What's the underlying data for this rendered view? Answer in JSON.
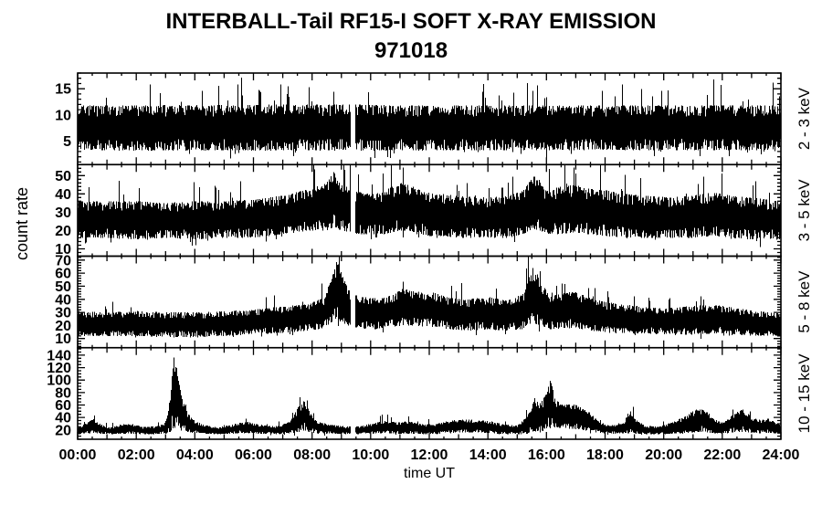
{
  "chart_data": {
    "type": "line",
    "title": "INTERBALL-Tail RF15-I SOFT X-RAY EMISSION",
    "subtitle": "971018",
    "ylabel": "count rate",
    "xlabel": "time UT",
    "line_color": "#000000",
    "background_color": "#ffffff",
    "x_axis": {
      "range_hours": [
        0,
        24
      ],
      "major_tick_hours": 2,
      "hour_tick": 1,
      "minor_tick_hours": 0.5,
      "tick_labels": [
        "00:00",
        "02:00",
        "04:00",
        "06:00",
        "08:00",
        "10:00",
        "12:00",
        "14:00",
        "16:00",
        "18:00",
        "20:00",
        "22:00",
        "24:00"
      ]
    },
    "data_gap_hours": [
      9.33,
      9.48
    ],
    "panels": [
      {
        "label": "2 - 3 keV",
        "ylim": [
          0.5,
          18
        ],
        "yticks": [
          5,
          10,
          15
        ],
        "minor_step": 1,
        "spike_chance": 0.06,
        "envelope": [
          [
            0,
            3.2,
            11.8
          ],
          [
            9,
            3.2,
            12.0
          ],
          [
            12,
            3.2,
            11.8
          ],
          [
            18,
            3.3,
            11.8
          ],
          [
            24,
            3.2,
            11.8
          ]
        ]
      },
      {
        "label": "3 - 5 keV",
        "ylim": [
          6,
          56
        ],
        "yticks": [
          10,
          20,
          30,
          40,
          50
        ],
        "minor_step": 2,
        "spike_chance": 0.05,
        "envelope": [
          [
            0,
            16,
            36
          ],
          [
            1,
            16,
            36
          ],
          [
            2,
            15,
            36
          ],
          [
            3,
            16,
            35
          ],
          [
            4,
            15,
            36
          ],
          [
            5,
            16,
            36
          ],
          [
            6,
            16,
            37
          ],
          [
            6.5,
            17,
            38
          ],
          [
            7,
            18,
            39
          ],
          [
            7.5,
            19,
            41
          ],
          [
            8,
            20,
            43
          ],
          [
            8.5,
            20,
            46
          ],
          [
            8.75,
            22,
            52
          ],
          [
            9,
            20,
            47
          ],
          [
            9.3,
            19,
            43
          ],
          [
            9.6,
            18,
            41
          ],
          [
            10,
            18,
            40
          ],
          [
            10.5,
            18,
            42
          ],
          [
            11,
            20,
            46
          ],
          [
            11.3,
            20,
            45
          ],
          [
            11.7,
            18,
            42
          ],
          [
            12,
            17,
            41
          ],
          [
            12.5,
            17,
            40
          ],
          [
            13,
            16,
            39
          ],
          [
            14,
            16,
            38
          ],
          [
            14.7,
            16,
            39
          ],
          [
            15.2,
            18,
            42
          ],
          [
            15.55,
            21,
            50
          ],
          [
            15.75,
            20,
            48
          ],
          [
            16,
            18,
            42
          ],
          [
            16.5,
            18,
            44
          ],
          [
            17,
            19,
            45
          ],
          [
            17.4,
            18,
            43
          ],
          [
            18,
            17,
            42
          ],
          [
            18.7,
            16,
            40
          ],
          [
            19.5,
            16,
            39
          ],
          [
            20.2,
            16,
            38
          ],
          [
            21,
            16,
            39
          ],
          [
            21.7,
            17,
            41
          ],
          [
            22.3,
            16,
            39
          ],
          [
            23,
            15,
            38
          ],
          [
            24,
            15,
            36
          ]
        ]
      },
      {
        "label": "5 - 8 keV",
        "ylim": [
          3,
          73
        ],
        "yticks": [
          10,
          20,
          30,
          40,
          50,
          60,
          70
        ],
        "minor_step": 2,
        "spike_chance": 0.05,
        "envelope": [
          [
            0,
            12,
            31
          ],
          [
            1,
            12,
            30
          ],
          [
            2,
            12,
            31
          ],
          [
            3,
            11,
            30
          ],
          [
            4,
            11,
            30
          ],
          [
            5,
            12,
            31
          ],
          [
            6,
            13,
            32
          ],
          [
            6.7,
            14,
            34
          ],
          [
            7.3,
            15,
            35
          ],
          [
            7.9,
            16,
            37
          ],
          [
            8.4,
            18,
            41
          ],
          [
            8.65,
            22,
            55
          ],
          [
            8.85,
            24,
            70
          ],
          [
            9.05,
            22,
            57
          ],
          [
            9.3,
            19,
            46
          ],
          [
            9.6,
            18,
            42
          ],
          [
            10,
            17,
            41
          ],
          [
            10.6,
            18,
            42
          ],
          [
            11.1,
            20,
            48
          ],
          [
            11.45,
            20,
            47
          ],
          [
            11.8,
            19,
            45
          ],
          [
            12.2,
            19,
            45
          ],
          [
            12.7,
            17,
            41
          ],
          [
            13.3,
            16,
            40
          ],
          [
            14,
            17,
            42
          ],
          [
            14.6,
            16,
            39
          ],
          [
            15.2,
            17,
            44
          ],
          [
            15.55,
            22,
            65
          ],
          [
            15.8,
            20,
            55
          ],
          [
            16.1,
            17,
            42
          ],
          [
            16.6,
            18,
            45
          ],
          [
            17.05,
            18,
            46
          ],
          [
            17.5,
            16,
            41
          ],
          [
            18,
            15,
            38
          ],
          [
            19,
            14,
            35
          ],
          [
            20,
            13,
            33
          ],
          [
            21,
            13,
            35
          ],
          [
            21.8,
            14,
            36
          ],
          [
            22.5,
            13,
            33
          ],
          [
            23.2,
            12,
            31
          ],
          [
            24,
            12,
            29
          ]
        ]
      },
      {
        "label": "10 - 15 keV",
        "ylim": [
          5,
          152
        ],
        "yticks": [
          20,
          40,
          60,
          80,
          100,
          120,
          140
        ],
        "minor_step": 5,
        "spike_chance": 0.04,
        "envelope": [
          [
            0,
            13,
            24
          ],
          [
            0.3,
            14,
            31
          ],
          [
            0.55,
            15,
            38
          ],
          [
            0.8,
            14,
            29
          ],
          [
            1.1,
            13,
            24
          ],
          [
            1.5,
            14,
            29
          ],
          [
            1.85,
            14,
            30
          ],
          [
            2.2,
            13,
            25
          ],
          [
            2.7,
            13,
            26
          ],
          [
            3,
            14,
            32
          ],
          [
            3.15,
            16,
            70
          ],
          [
            3.28,
            24,
            143
          ],
          [
            3.4,
            22,
            115
          ],
          [
            3.55,
            18,
            72
          ],
          [
            3.75,
            16,
            48
          ],
          [
            4,
            15,
            35
          ],
          [
            4.3,
            14,
            28
          ],
          [
            4.8,
            13,
            24
          ],
          [
            5.3,
            14,
            29
          ],
          [
            5.75,
            15,
            34
          ],
          [
            6.2,
            14,
            28
          ],
          [
            6.8,
            13,
            26
          ],
          [
            7.25,
            14,
            33
          ],
          [
            7.55,
            17,
            58
          ],
          [
            7.75,
            19,
            68
          ],
          [
            7.95,
            16,
            46
          ],
          [
            8.2,
            14,
            33
          ],
          [
            8.6,
            14,
            29
          ],
          [
            9.1,
            13,
            26
          ],
          [
            9.6,
            13,
            26
          ],
          [
            10.1,
            14,
            31
          ],
          [
            10.5,
            15,
            35
          ],
          [
            10.9,
            14,
            32
          ],
          [
            11.3,
            14,
            34
          ],
          [
            11.75,
            13,
            29
          ],
          [
            12.2,
            13,
            29
          ],
          [
            12.6,
            15,
            34
          ],
          [
            13.1,
            16,
            37
          ],
          [
            13.6,
            16,
            36
          ],
          [
            14.1,
            15,
            34
          ],
          [
            14.5,
            13,
            29
          ],
          [
            15,
            13,
            27
          ],
          [
            15.35,
            14,
            42
          ],
          [
            15.6,
            18,
            75
          ],
          [
            15.8,
            15,
            62
          ],
          [
            16,
            22,
            80
          ],
          [
            16.15,
            26,
            102
          ],
          [
            16.3,
            24,
            68
          ],
          [
            16.6,
            22,
            60
          ],
          [
            16.9,
            22,
            62
          ],
          [
            17.2,
            20,
            56
          ],
          [
            17.5,
            18,
            47
          ],
          [
            17.8,
            15,
            33
          ],
          [
            18.2,
            14,
            27
          ],
          [
            18.6,
            14,
            30
          ],
          [
            18.85,
            15,
            52
          ],
          [
            19.05,
            14,
            36
          ],
          [
            19.4,
            13,
            26
          ],
          [
            19.9,
            13,
            26
          ],
          [
            20.35,
            14,
            33
          ],
          [
            20.75,
            15,
            42
          ],
          [
            21.05,
            16,
            52
          ],
          [
            21.35,
            17,
            56
          ],
          [
            21.65,
            15,
            41
          ],
          [
            22,
            14,
            31
          ],
          [
            22.4,
            16,
            46
          ],
          [
            22.7,
            17,
            53
          ],
          [
            23,
            15,
            41
          ],
          [
            23.3,
            14,
            36
          ],
          [
            23.6,
            15,
            39
          ],
          [
            23.9,
            14,
            31
          ],
          [
            24,
            14,
            27
          ]
        ]
      }
    ]
  }
}
